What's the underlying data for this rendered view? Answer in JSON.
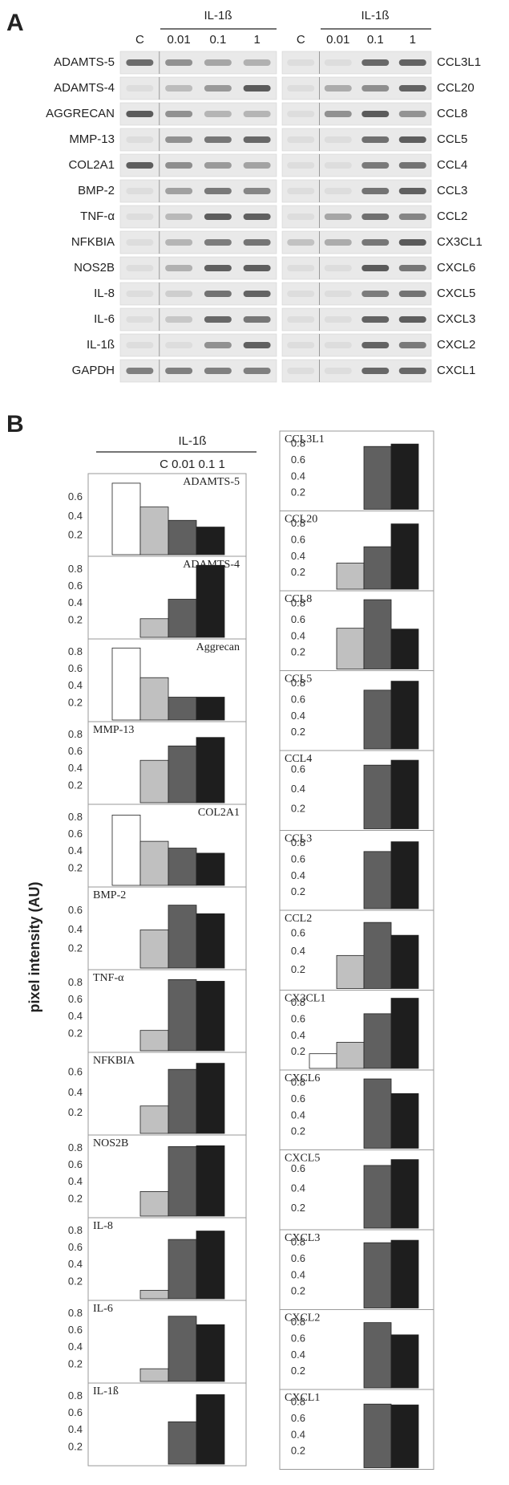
{
  "panel_a": {
    "label": "A",
    "treatment_left": "IL-1ß",
    "treatment_right": "IL-1ß",
    "lanes_left": [
      "C",
      "0.01",
      "0.1",
      "1"
    ],
    "lanes_right": [
      "C",
      "0.01",
      "0.1",
      "1"
    ],
    "rows_left": [
      "ADAMTS-5",
      "ADAMTS-4",
      "AGGRECAN",
      "MMP-13",
      "COL2A1",
      "BMP-2",
      "TNF-α",
      "NFKBIA",
      "NOS2B",
      "IL-8",
      "IL-6",
      "IL-1ß",
      "GAPDH"
    ],
    "rows_right": [
      "CCL3L1",
      "CCL20",
      "CCL8",
      "CCL5",
      "CCL4",
      "CCL3",
      "CCL2",
      "CX3CL1",
      "CXCL6",
      "CXCL5",
      "CXCL3",
      "CXCL2",
      "CXCL1"
    ]
  },
  "panel_b": {
    "label": "B",
    "treatment": "IL-1ß",
    "doses": "C 0.01 0.1 1",
    "y_label": "pixel intensity (AU)",
    "bar_colors": [
      "#ffffff",
      "#c0c0c0",
      "#606060",
      "#1e1e1e"
    ]
  },
  "chart_data": [
    {
      "type": "bar",
      "title": "ADAMTS-5",
      "title_position": "right",
      "values": [
        0.75,
        0.5,
        0.36,
        0.29
      ],
      "ylim": [
        0,
        0.8
      ],
      "yticks": [
        0.2,
        0.4,
        0.6
      ]
    },
    {
      "type": "bar",
      "title": "ADAMTS-4",
      "title_position": "right",
      "values": [
        0,
        0.22,
        0.45,
        0.85
      ],
      "ylim": [
        0,
        0.9
      ],
      "yticks": [
        0.2,
        0.4,
        0.6,
        0.8
      ]
    },
    {
      "type": "bar",
      "title": "Aggrecan",
      "title_position": "right",
      "values": [
        0.85,
        0.5,
        0.27,
        0.27
      ],
      "ylim": [
        0,
        0.9
      ],
      "yticks": [
        0.2,
        0.4,
        0.6,
        0.8
      ]
    },
    {
      "type": "bar",
      "title": "MMP-13",
      "title_position": "left",
      "values": [
        0,
        0.5,
        0.67,
        0.77
      ],
      "ylim": [
        0,
        0.9
      ],
      "yticks": [
        0.2,
        0.4,
        0.6,
        0.8
      ]
    },
    {
      "type": "bar",
      "title": "COL2A1",
      "title_position": "right",
      "values": [
        0.83,
        0.52,
        0.44,
        0.38
      ],
      "ylim": [
        0,
        0.9
      ],
      "yticks": [
        0.2,
        0.4,
        0.6,
        0.8
      ]
    },
    {
      "type": "bar",
      "title": "BMP-2",
      "title_position": "left",
      "values": [
        0,
        0.4,
        0.66,
        0.57
      ],
      "ylim": [
        0,
        0.8
      ],
      "yticks": [
        0.2,
        0.4,
        0.6
      ]
    },
    {
      "type": "bar",
      "title": "TNF-α",
      "title_position": "left",
      "values": [
        0,
        0.24,
        0.84,
        0.82
      ],
      "ylim": [
        0,
        0.9
      ],
      "yticks": [
        0.2,
        0.4,
        0.6,
        0.8
      ]
    },
    {
      "type": "bar",
      "title": "NFKBIA",
      "title_position": "left",
      "values": [
        0,
        0.27,
        0.63,
        0.69
      ],
      "ylim": [
        0,
        0.75
      ],
      "yticks": [
        0.2,
        0.4,
        0.6
      ]
    },
    {
      "type": "bar",
      "title": "NOS2B",
      "title_position": "left",
      "values": [
        0,
        0.29,
        0.82,
        0.83
      ],
      "ylim": [
        0,
        0.9
      ],
      "yticks": [
        0.2,
        0.4,
        0.6,
        0.8
      ]
    },
    {
      "type": "bar",
      "title": "IL-8",
      "title_position": "left",
      "values": [
        0,
        0.1,
        0.7,
        0.8
      ],
      "ylim": [
        0,
        0.9
      ],
      "yticks": [
        0.2,
        0.4,
        0.6,
        0.8
      ]
    },
    {
      "type": "bar",
      "title": "IL-6",
      "title_position": "left",
      "values": [
        0,
        0.15,
        0.77,
        0.67
      ],
      "ylim": [
        0,
        0.9
      ],
      "yticks": [
        0.2,
        0.4,
        0.6,
        0.8
      ]
    },
    {
      "type": "bar",
      "title": "IL-1ß",
      "title_position": "left",
      "values": [
        0,
        0,
        0.5,
        0.82
      ],
      "ylim": [
        0,
        0.9
      ],
      "yticks": [
        0.2,
        0.4,
        0.6,
        0.8
      ]
    },
    {
      "type": "bar",
      "title": "CCL3L1",
      "title_position": "left",
      "values": [
        0,
        0,
        0.77,
        0.8
      ],
      "ylim": [
        0,
        0.9
      ],
      "yticks": [
        0.2,
        0.4,
        0.6,
        0.8
      ]
    },
    {
      "type": "bar",
      "title": "CCL20",
      "title_position": "left",
      "values": [
        0,
        0.32,
        0.52,
        0.8
      ],
      "ylim": [
        0,
        0.9
      ],
      "yticks": [
        0.2,
        0.4,
        0.6,
        0.8
      ]
    },
    {
      "type": "bar",
      "title": "CCL8",
      "title_position": "left",
      "values": [
        0,
        0.5,
        0.85,
        0.49
      ],
      "ylim": [
        0,
        0.9
      ],
      "yticks": [
        0.2,
        0.4,
        0.6,
        0.8
      ]
    },
    {
      "type": "bar",
      "title": "CCL5",
      "title_position": "left",
      "values": [
        0,
        0,
        0.72,
        0.83
      ],
      "ylim": [
        0,
        0.9
      ],
      "yticks": [
        0.2,
        0.4,
        0.6,
        0.8
      ]
    },
    {
      "type": "bar",
      "title": "CCL4",
      "title_position": "left",
      "values": [
        0,
        0,
        0.65,
        0.7
      ],
      "ylim": [
        0,
        0.75
      ],
      "yticks": [
        0.2,
        0.4,
        0.6
      ]
    },
    {
      "type": "bar",
      "title": "CCL3",
      "title_position": "left",
      "values": [
        0,
        0,
        0.7,
        0.82
      ],
      "ylim": [
        0,
        0.9
      ],
      "yticks": [
        0.2,
        0.4,
        0.6,
        0.8
      ]
    },
    {
      "type": "bar",
      "title": "CCL2",
      "title_position": "left",
      "values": [
        0,
        0.36,
        0.72,
        0.58
      ],
      "ylim": [
        0,
        0.8
      ],
      "yticks": [
        0.2,
        0.4,
        0.6
      ]
    },
    {
      "type": "bar",
      "title": "CX3CL1",
      "title_position": "left",
      "values": [
        0.18,
        0.32,
        0.67,
        0.86
      ],
      "ylim": [
        0,
        0.9
      ],
      "yticks": [
        0.2,
        0.4,
        0.6,
        0.8
      ]
    },
    {
      "type": "bar",
      "title": "CXCL6",
      "title_position": "left",
      "values": [
        0,
        0,
        0.85,
        0.67
      ],
      "ylim": [
        0,
        0.9
      ],
      "yticks": [
        0.2,
        0.4,
        0.6,
        0.8
      ]
    },
    {
      "type": "bar",
      "title": "CXCL5",
      "title_position": "left",
      "values": [
        0,
        0,
        0.64,
        0.7
      ],
      "ylim": [
        0,
        0.75
      ],
      "yticks": [
        0.2,
        0.4,
        0.6
      ]
    },
    {
      "type": "bar",
      "title": "CXCL3",
      "title_position": "left",
      "values": [
        0,
        0,
        0.8,
        0.83
      ],
      "ylim": [
        0,
        0.9
      ],
      "yticks": [
        0.2,
        0.4,
        0.6,
        0.8
      ]
    },
    {
      "type": "bar",
      "title": "CXCL2",
      "title_position": "left",
      "values": [
        0,
        0,
        0.8,
        0.65
      ],
      "ylim": [
        0,
        0.9
      ],
      "yticks": [
        0.2,
        0.4,
        0.6,
        0.8
      ]
    },
    {
      "type": "bar",
      "title": "CXCL1",
      "title_position": "left",
      "values": [
        0,
        0,
        0.78,
        0.77
      ],
      "ylim": [
        0,
        0.9
      ],
      "yticks": [
        0.2,
        0.4,
        0.6,
        0.8
      ]
    }
  ]
}
